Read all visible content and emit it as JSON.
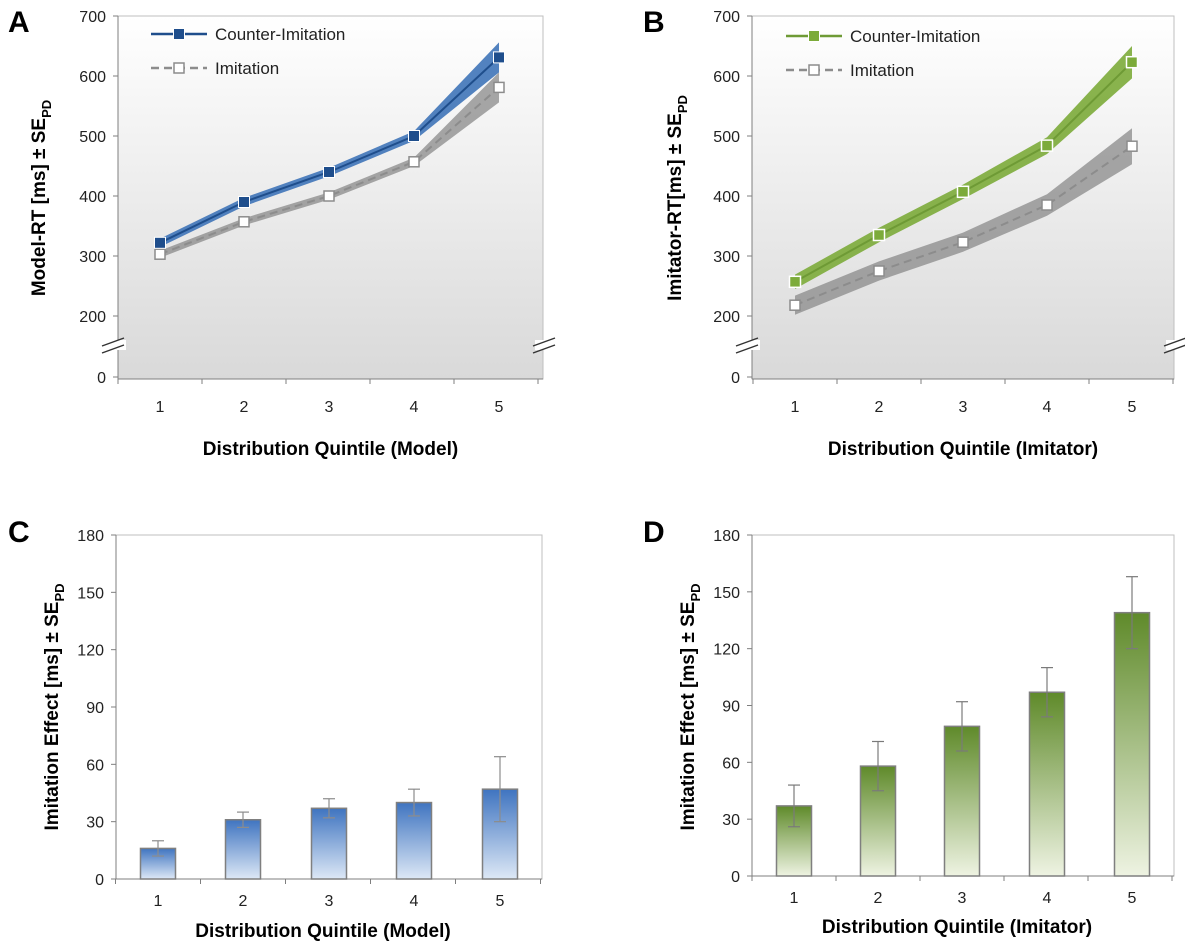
{
  "colors": {
    "blue": "#1f4e8c",
    "blue_band": "#3f74b8",
    "green": "#6e9a35",
    "green_band": "#7cab3a",
    "gray_band": "#8a8a8a",
    "gray_line": "#8c8c8c"
  },
  "chart_data": [
    {
      "panel": "A",
      "type": "line",
      "xlabel": "Distribution Quintile (Model)",
      "ylabel": {
        "main": "Model-RT [ms] ± SE",
        "sub": "PD"
      },
      "x": [
        1,
        2,
        3,
        4,
        5
      ],
      "ylim": [
        0,
        700
      ],
      "yticks": [
        0,
        200,
        300,
        400,
        500,
        600,
        700
      ],
      "axis_break": true,
      "grid": false,
      "legend_position": "top-left",
      "series": [
        {
          "name": "Counter-Imitation",
          "style": "solid",
          "color": "blue",
          "values": [
            322,
            390,
            440,
            500,
            631
          ],
          "se": [
            7,
            7,
            7,
            8,
            25
          ]
        },
        {
          "name": "Imitation",
          "style": "dashed",
          "color": "gray",
          "values": [
            303,
            357,
            400,
            457,
            581
          ],
          "se": [
            6,
            6,
            6,
            7,
            25
          ]
        }
      ]
    },
    {
      "panel": "B",
      "type": "line",
      "xlabel": "Distribution Quintile (Imitator)",
      "ylabel": {
        "main": "Imitator-RT[ms] ± SE",
        "sub": "PD"
      },
      "x": [
        1,
        2,
        3,
        4,
        5
      ],
      "ylim": [
        0,
        700
      ],
      "yticks": [
        0,
        200,
        300,
        400,
        500,
        600,
        700
      ],
      "axis_break": true,
      "grid": false,
      "legend_position": "top-left",
      "series": [
        {
          "name": "Counter-Imitation",
          "style": "solid",
          "color": "green",
          "values": [
            257,
            335,
            407,
            484,
            623
          ],
          "se": [
            12,
            12,
            12,
            14,
            27
          ]
        },
        {
          "name": "Imitation",
          "style": "dashed",
          "color": "gray",
          "values": [
            218,
            275,
            323,
            385,
            483
          ],
          "se": [
            16,
            16,
            16,
            18,
            30
          ]
        }
      ]
    },
    {
      "panel": "C",
      "type": "bar",
      "xlabel": "Distribution Quintile (Model)",
      "ylabel": {
        "main": "Imitation Effect [ms] ± SE",
        "sub": "PD"
      },
      "categories": [
        "1",
        "2",
        "3",
        "4",
        "5"
      ],
      "ylim": [
        0,
        180
      ],
      "yticks": [
        0,
        30,
        60,
        90,
        120,
        150,
        180
      ],
      "grid": false,
      "series": [
        {
          "color": "blue",
          "values": [
            16,
            31,
            37,
            40,
            47
          ],
          "error": [
            4,
            4,
            5,
            7,
            17
          ]
        }
      ]
    },
    {
      "panel": "D",
      "type": "bar",
      "xlabel": "Distribution Quintile (Imitator)",
      "ylabel": {
        "main": "Imitation Effect [ms] ± SE",
        "sub": "PD"
      },
      "categories": [
        "1",
        "2",
        "3",
        "4",
        "5"
      ],
      "ylim": [
        0,
        180
      ],
      "yticks": [
        0,
        30,
        60,
        90,
        120,
        150,
        180
      ],
      "grid": false,
      "series": [
        {
          "color": "green",
          "values": [
            37,
            58,
            79,
            97,
            139
          ],
          "error": [
            11,
            13,
            13,
            13,
            19
          ]
        }
      ]
    }
  ]
}
